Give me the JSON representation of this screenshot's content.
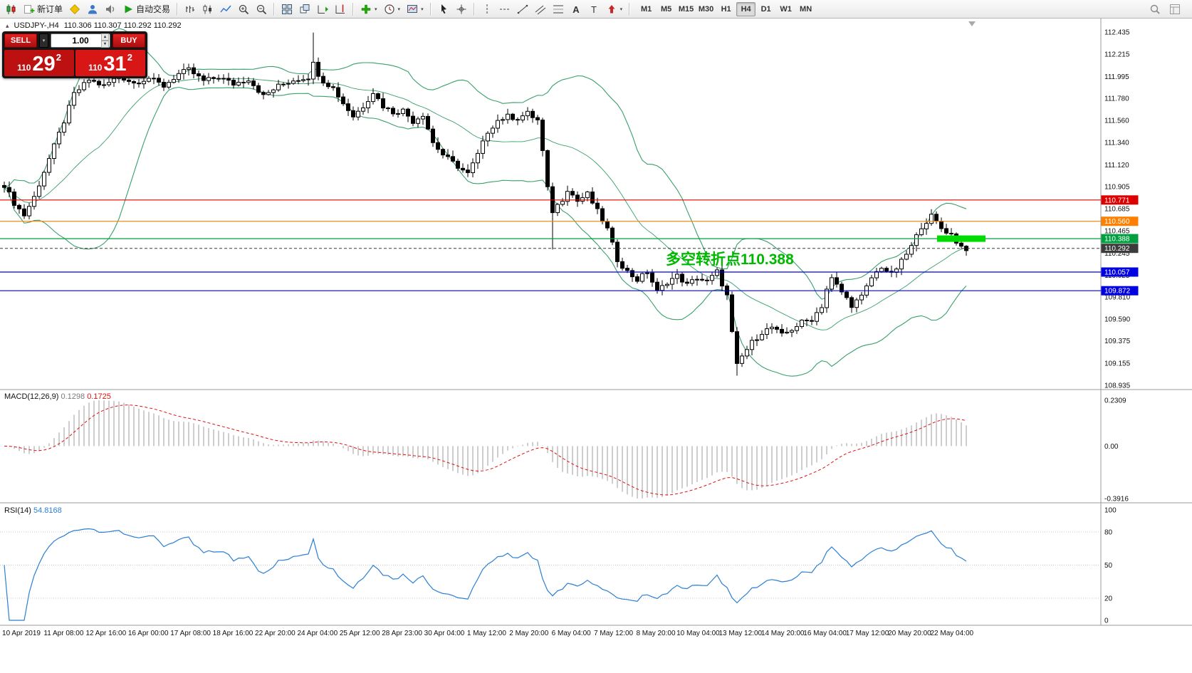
{
  "toolbar": {
    "new_order_label": "新订单",
    "autotrading_label": "自动交易",
    "timeframes": {
      "options": [
        "M1",
        "M5",
        "M15",
        "M30",
        "H1",
        "H4",
        "D1",
        "W1",
        "MN"
      ],
      "active": "H4"
    }
  },
  "chart": {
    "symbol_label": "USDJPY-,H4",
    "quote_line": "110.306 110.307 110.292 110.292"
  },
  "trade_panel": {
    "sell_label": "SELL",
    "buy_label": "BUY",
    "volume": "1.00",
    "sell_price": {
      "small": "110",
      "big": "29",
      "sup": "2"
    },
    "buy_price": {
      "small": "110",
      "big": "31",
      "sup": "2"
    }
  },
  "annotation": {
    "text": "多空转折点110.388",
    "color": "#00b800"
  },
  "price_scale": {
    "ticks": [
      "112.435",
      "112.215",
      "111.995",
      "111.780",
      "111.560",
      "111.340",
      "111.120",
      "110.905",
      "110.685",
      "110.465",
      "110.245",
      "110.025",
      "109.810",
      "109.590",
      "109.375",
      "109.155",
      "108.935"
    ]
  },
  "levels": [
    {
      "label": "110.771",
      "price": 110.771,
      "color": "#dd0000",
      "style": "solid"
    },
    {
      "label": "110.560",
      "price": 110.56,
      "color": "#ff8000",
      "style": "solid"
    },
    {
      "label": "110.388",
      "price": 110.388,
      "color": "#00a040",
      "style": "solid"
    },
    {
      "label": "110.292",
      "price": 110.292,
      "color": "#3c3c3c",
      "style": "dashed",
      "current": true
    },
    {
      "label": "110.057",
      "price": 110.057,
      "color": "#0000e0",
      "style": "solid"
    },
    {
      "label": "109.872",
      "price": 109.872,
      "color": "#0000e0",
      "style": "solid"
    }
  ],
  "macd_pane": {
    "label": "MACD(12,26,9)",
    "value_main": "0.1298",
    "value_signal": "0.1725",
    "scale_top": "0.2309",
    "scale_zero": "0.00",
    "scale_bottom": "-0.3916"
  },
  "rsi_pane": {
    "label": "RSI(14)",
    "value": "54.8168",
    "scale": [
      "100",
      "80",
      "50",
      "20",
      "0"
    ],
    "levels": [
      80,
      50,
      20
    ]
  },
  "time_axis": [
    "10 Apr 2019",
    "11 Apr 08:00",
    "12 Apr 16:00",
    "16 Apr 00:00",
    "17 Apr 08:00",
    "18 Apr 16:00",
    "22 Apr 20:00",
    "24 Apr 04:00",
    "25 Apr 12:00",
    "28 Apr 23:00",
    "30 Apr 04:00",
    "1 May 12:00",
    "2 May 20:00",
    "6 May 04:00",
    "7 May 12:00",
    "8 May 20:00",
    "10 May 04:00",
    "13 May 12:00",
    "14 May 20:00",
    "16 May 04:00",
    "17 May 12:00",
    "20 May 20:00",
    "22 May 04:00"
  ],
  "chart_data": {
    "type": "candlestick",
    "symbol": "USDJPY-",
    "timeframe": "H4",
    "bars": 194,
    "price_range_visible": [
      108.935,
      112.435
    ],
    "price_waypoints": [
      [
        0,
        110.92
      ],
      [
        2,
        110.74
      ],
      [
        4,
        110.62
      ],
      [
        6,
        110.8
      ],
      [
        9,
        111.18
      ],
      [
        12,
        111.55
      ],
      [
        14,
        111.82
      ],
      [
        17,
        111.96
      ],
      [
        20,
        111.9
      ],
      [
        23,
        112.0
      ],
      [
        26,
        111.93
      ],
      [
        29,
        111.98
      ],
      [
        32,
        111.9
      ],
      [
        35,
        112.02
      ],
      [
        37,
        112.06
      ],
      [
        40,
        111.95
      ],
      [
        43,
        111.99
      ],
      [
        46,
        111.92
      ],
      [
        49,
        111.97
      ],
      [
        52,
        111.8
      ],
      [
        55,
        111.9
      ],
      [
        58,
        111.96
      ],
      [
        61,
        111.99
      ],
      [
        62,
        112.12
      ],
      [
        63,
        112.02
      ],
      [
        64,
        111.95
      ],
      [
        66,
        111.88
      ],
      [
        68,
        111.73
      ],
      [
        70,
        111.6
      ],
      [
        72,
        111.7
      ],
      [
        74,
        111.84
      ],
      [
        76,
        111.7
      ],
      [
        78,
        111.64
      ],
      [
        80,
        111.66
      ],
      [
        82,
        111.55
      ],
      [
        84,
        111.62
      ],
      [
        86,
        111.34
      ],
      [
        88,
        111.22
      ],
      [
        90,
        111.14
      ],
      [
        93,
        111.03
      ],
      [
        95,
        111.22
      ],
      [
        97,
        111.45
      ],
      [
        99,
        111.56
      ],
      [
        101,
        111.6
      ],
      [
        103,
        111.58
      ],
      [
        105,
        111.63
      ],
      [
        107,
        111.56
      ],
      [
        108,
        111.25
      ],
      [
        109,
        110.88
      ],
      [
        110,
        110.66
      ],
      [
        112,
        110.78
      ],
      [
        113,
        110.88
      ],
      [
        115,
        110.76
      ],
      [
        117,
        110.83
      ],
      [
        119,
        110.66
      ],
      [
        121,
        110.48
      ],
      [
        123,
        110.18
      ],
      [
        125,
        110.06
      ],
      [
        127,
        109.98
      ],
      [
        129,
        110.06
      ],
      [
        131,
        109.86
      ],
      [
        133,
        109.96
      ],
      [
        135,
        110.02
      ],
      [
        137,
        109.93
      ],
      [
        139,
        110.0
      ],
      [
        141,
        109.96
      ],
      [
        143,
        110.06
      ],
      [
        145,
        109.82
      ],
      [
        146,
        109.45
      ],
      [
        147,
        109.13
      ],
      [
        148,
        109.22
      ],
      [
        150,
        109.36
      ],
      [
        152,
        109.46
      ],
      [
        154,
        109.51
      ],
      [
        156,
        109.43
      ],
      [
        158,
        109.49
      ],
      [
        160,
        109.56
      ],
      [
        162,
        109.59
      ],
      [
        164,
        109.72
      ],
      [
        165,
        109.89
      ],
      [
        166,
        109.99
      ],
      [
        168,
        109.86
      ],
      [
        170,
        109.73
      ],
      [
        172,
        109.81
      ],
      [
        174,
        110.0
      ],
      [
        176,
        110.11
      ],
      [
        178,
        110.03
      ],
      [
        180,
        110.16
      ],
      [
        182,
        110.31
      ],
      [
        184,
        110.51
      ],
      [
        186,
        110.61
      ],
      [
        188,
        110.49
      ],
      [
        190,
        110.43
      ],
      [
        191,
        110.36
      ],
      [
        192,
        110.31
      ],
      [
        193,
        110.29
      ]
    ],
    "wick_overrides": [
      {
        "i": 62,
        "high": 112.43
      },
      {
        "i": 110,
        "low": 110.28
      },
      {
        "i": 147,
        "low": 109.03
      },
      {
        "i": 186,
        "high": 110.68
      }
    ],
    "overlays": {
      "bollinger": {
        "period": 20,
        "deviation": 2,
        "color": "#3aa06a"
      }
    },
    "indicators": [
      {
        "name": "MACD",
        "params": [
          12,
          26,
          9
        ],
        "values_shown": [
          0.1298,
          0.1725
        ],
        "range_shown": [
          -0.3916,
          0.2309
        ]
      },
      {
        "name": "RSI",
        "params": [
          14
        ],
        "value_shown": 54.8168
      }
    ],
    "key_levels": [
      110.771,
      110.56,
      110.388,
      110.292,
      110.057,
      109.872
    ],
    "highlight_zone": {
      "price": 110.388,
      "color": "#00dc00"
    }
  },
  "colors": {
    "candle_up": "#ffffff",
    "candle_down": "#000000",
    "candle_outline": "#000000",
    "macd_histogram": "#b8b8b8",
    "macd_signal": "#e01010",
    "rsi_line": "#2a7fd4"
  }
}
